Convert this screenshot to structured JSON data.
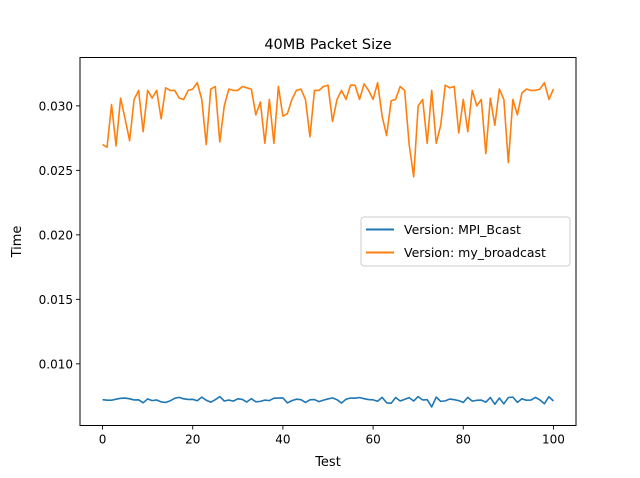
{
  "chart_data": {
    "type": "line",
    "title": "40MB Packet Size",
    "xlabel": "Test",
    "ylabel": "Time",
    "xlim": [
      -5,
      105
    ],
    "ylim": [
      0.00522,
      0.03375
    ],
    "x_ticks": [
      0,
      20,
      40,
      60,
      80,
      100
    ],
    "y_ticks": [
      0.01,
      0.015,
      0.02,
      0.025,
      0.03
    ],
    "y_tick_labels": [
      "0.010",
      "0.015",
      "0.020",
      "0.025",
      "0.030"
    ],
    "legend_placement": "center-right",
    "grid": false,
    "series": [
      {
        "name": "Version: MPI_Bcast",
        "color": "#1f77b4",
        "values": [
          0.00722,
          0.00718,
          0.00718,
          0.00726,
          0.00733,
          0.00735,
          0.00729,
          0.0072,
          0.00721,
          0.00698,
          0.00728,
          0.00715,
          0.0072,
          0.00705,
          0.00701,
          0.00713,
          0.00733,
          0.0074,
          0.00729,
          0.00724,
          0.00725,
          0.00714,
          0.00742,
          0.00718,
          0.00703,
          0.00722,
          0.00746,
          0.00712,
          0.00719,
          0.00711,
          0.00729,
          0.00724,
          0.00704,
          0.0073,
          0.00706,
          0.00709,
          0.00719,
          0.00715,
          0.00734,
          0.00735,
          0.00736,
          0.00697,
          0.00715,
          0.00726,
          0.00722,
          0.00701,
          0.00721,
          0.00723,
          0.00707,
          0.00719,
          0.00728,
          0.00736,
          0.00722,
          0.00696,
          0.00726,
          0.00735,
          0.00734,
          0.00739,
          0.0073,
          0.00723,
          0.00721,
          0.0071,
          0.0074,
          0.00698,
          0.00694,
          0.00739,
          0.00712,
          0.00725,
          0.00738,
          0.00712,
          0.00746,
          0.0072,
          0.00722,
          0.00666,
          0.00742,
          0.00709,
          0.00713,
          0.00727,
          0.00722,
          0.00715,
          0.00701,
          0.0074,
          0.00711,
          0.00717,
          0.00719,
          0.00703,
          0.00739,
          0.00687,
          0.00735,
          0.0069,
          0.00739,
          0.00742,
          0.00701,
          0.00729,
          0.00718,
          0.00719,
          0.0074,
          0.0072,
          0.00691,
          0.00745,
          0.00712
        ]
      },
      {
        "name": "Version: my_broadcast",
        "color": "#ff7f0e",
        "values": [
          0.027,
          0.0268,
          0.0301,
          0.0269,
          0.0306,
          0.029,
          0.0273,
          0.0305,
          0.0312,
          0.028,
          0.0312,
          0.0306,
          0.0312,
          0.029,
          0.0314,
          0.0312,
          0.0312,
          0.0306,
          0.0305,
          0.0312,
          0.0313,
          0.0318,
          0.0305,
          0.027,
          0.0313,
          0.0315,
          0.0272,
          0.03,
          0.0313,
          0.0312,
          0.0312,
          0.0315,
          0.0314,
          0.0313,
          0.0293,
          0.0303,
          0.0271,
          0.0305,
          0.0271,
          0.0315,
          0.0292,
          0.0294,
          0.0305,
          0.0312,
          0.0313,
          0.0305,
          0.0276,
          0.0312,
          0.0312,
          0.0315,
          0.0316,
          0.0288,
          0.0305,
          0.0312,
          0.0305,
          0.0316,
          0.0316,
          0.0305,
          0.0317,
          0.0312,
          0.0305,
          0.0318,
          0.0292,
          0.0277,
          0.0304,
          0.0305,
          0.0315,
          0.0312,
          0.027,
          0.0245,
          0.03,
          0.0305,
          0.0271,
          0.0312,
          0.0271,
          0.0285,
          0.0316,
          0.0314,
          0.0315,
          0.0279,
          0.0305,
          0.028,
          0.0312,
          0.03,
          0.0305,
          0.0263,
          0.0306,
          0.0285,
          0.0313,
          0.0305,
          0.0256,
          0.0305,
          0.0293,
          0.031,
          0.0313,
          0.0312,
          0.0312,
          0.0313,
          0.0318,
          0.0305,
          0.0313
        ]
      }
    ]
  }
}
